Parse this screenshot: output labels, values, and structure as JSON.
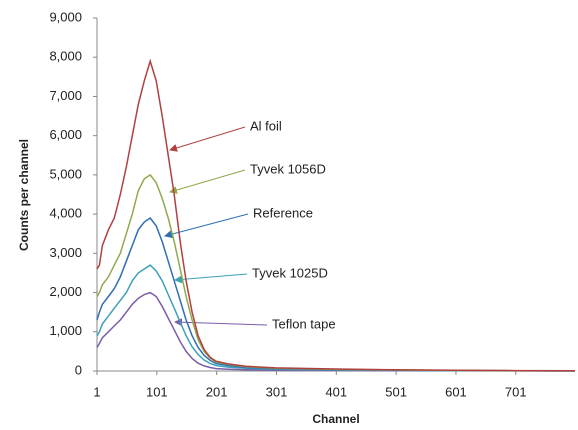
{
  "chart_data": {
    "type": "line",
    "xlabel": "Channel",
    "ylabel": "Counts per channel",
    "x": [
      1,
      5,
      10,
      20,
      30,
      40,
      50,
      60,
      70,
      80,
      90,
      100,
      110,
      120,
      130,
      140,
      150,
      160,
      170,
      180,
      190,
      200,
      220,
      250,
      300,
      400,
      500,
      600,
      700,
      800
    ],
    "series": [
      {
        "name": "Al foil",
        "color": "#b0413e",
        "values": [
          2600,
          2700,
          3200,
          3600,
          3900,
          4500,
          5200,
          6000,
          6800,
          7400,
          7900,
          7400,
          6500,
          5500,
          4500,
          3300,
          2300,
          1500,
          900,
          550,
          350,
          250,
          180,
          120,
          80,
          50,
          30,
          20,
          10,
          5
        ]
      },
      {
        "name": "Tyvek 1056D",
        "color": "#8faa4c",
        "values": [
          1900,
          2000,
          2200,
          2400,
          2700,
          3000,
          3500,
          4000,
          4600,
          4900,
          5000,
          4800,
          4400,
          3900,
          3300,
          2600,
          1900,
          1300,
          800,
          500,
          330,
          230,
          170,
          110,
          70,
          40,
          25,
          15,
          8,
          4
        ]
      },
      {
        "name": "Reference",
        "color": "#2f6fb5",
        "values": [
          1300,
          1500,
          1700,
          1900,
          2100,
          2400,
          2800,
          3200,
          3600,
          3800,
          3900,
          3700,
          3300,
          2800,
          2300,
          1800,
          1300,
          900,
          600,
          400,
          270,
          190,
          140,
          90,
          60,
          35,
          20,
          12,
          6,
          3
        ]
      },
      {
        "name": "Tyvek 1025D",
        "color": "#3ba0b8",
        "values": [
          900,
          1000,
          1200,
          1400,
          1600,
          1800,
          2000,
          2300,
          2500,
          2600,
          2700,
          2550,
          2300,
          1950,
          1600,
          1250,
          900,
          620,
          420,
          280,
          190,
          140,
          100,
          70,
          45,
          25,
          15,
          8,
          4,
          2
        ]
      },
      {
        "name": "Teflon tape",
        "color": "#7a5ea8",
        "values": [
          600,
          700,
          850,
          1000,
          1150,
          1300,
          1500,
          1700,
          1850,
          1950,
          2000,
          1900,
          1650,
          1350,
          1050,
          750,
          500,
          320,
          200,
          130,
          90,
          60,
          45,
          30,
          20,
          12,
          7,
          4,
          2,
          1
        ]
      }
    ],
    "annotations": [
      {
        "text": "Al foil"
      },
      {
        "text": "Tyvek 1056D"
      },
      {
        "text": "Reference"
      },
      {
        "text": "Tyvek 1025D"
      },
      {
        "text": "Teflon tape"
      }
    ],
    "xlim": [
      1,
      800
    ],
    "xticks": [
      1,
      101,
      201,
      301,
      401,
      501,
      601,
      701
    ],
    "ylim": [
      0,
      9000
    ],
    "yticks": [
      0,
      {
        "value": 1000,
        "label": "1,000"
      },
      {
        "value": 2000,
        "label": "2,000"
      },
      {
        "value": 3000,
        "label": "3,000"
      },
      {
        "value": 4000,
        "label": "4,000"
      },
      {
        "value": 5000,
        "label": "5,000"
      },
      {
        "value": 6000,
        "label": "6,000"
      },
      {
        "value": 7000,
        "label": "7,000"
      },
      {
        "value": 8000,
        "label": "8,000"
      },
      {
        "value": 9000,
        "label": "9,000"
      }
    ],
    "grid": false
  }
}
